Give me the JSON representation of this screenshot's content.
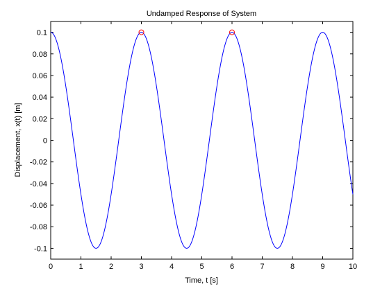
{
  "chart_data": {
    "type": "line",
    "title": "Undamped Response of System",
    "xlabel": "Time, t [s]",
    "ylabel": "Displacement, x(t) [m]",
    "xlim": [
      0,
      10
    ],
    "ylim": [
      -0.11,
      0.11
    ],
    "xticks": [
      0,
      1,
      2,
      3,
      4,
      5,
      6,
      7,
      8,
      9,
      10
    ],
    "xtick_labels": [
      "0",
      "1",
      "2",
      "3",
      "4",
      "5",
      "6",
      "7",
      "8",
      "9",
      "10"
    ],
    "yticks": [
      -0.1,
      -0.08,
      -0.06,
      -0.04,
      -0.02,
      0,
      0.02,
      0.04,
      0.06,
      0.08,
      0.1
    ],
    "ytick_labels": [
      "-0.1",
      "-0.08",
      "-0.06",
      "-0.04",
      "-0.02",
      "0",
      "0.02",
      "0.04",
      "0.06",
      "0.08",
      "0.1"
    ],
    "grid": false,
    "series": [
      {
        "style": "line",
        "color": "#0000ff",
        "function": "x(t) = 0.1*cos((2*pi/3)*t)",
        "x": [
          0,
          0.25,
          0.5,
          0.75,
          1,
          1.25,
          1.5,
          1.75,
          2,
          2.25,
          2.5,
          2.75,
          3,
          3.25,
          3.5,
          3.75,
          4,
          4.25,
          4.5,
          4.75,
          5,
          5.25,
          5.5,
          5.75,
          6,
          6.25,
          6.5,
          6.75,
          7,
          7.25,
          7.5,
          7.75,
          8,
          8.25,
          8.5,
          8.75,
          9,
          9.25,
          9.5,
          9.75,
          10
        ],
        "y": [
          0.1,
          0.0866,
          0.05,
          0,
          -0.05,
          -0.0866,
          -0.1,
          -0.0866,
          -0.05,
          0,
          0.05,
          0.0866,
          0.1,
          0.0866,
          0.05,
          0,
          -0.05,
          -0.0866,
          -0.1,
          -0.0866,
          -0.05,
          0,
          0.05,
          0.0866,
          0.1,
          0.0866,
          0.05,
          0,
          -0.05,
          -0.0866,
          -0.1,
          -0.0866,
          -0.05,
          0,
          0.05,
          0.0866,
          0.1,
          0.0866,
          0.05,
          0,
          -0.05
        ]
      },
      {
        "style": "markers",
        "marker": "circle",
        "color": "#ff0000",
        "x": [
          3,
          6
        ],
        "y": [
          0.1,
          0.1
        ]
      }
    ]
  }
}
